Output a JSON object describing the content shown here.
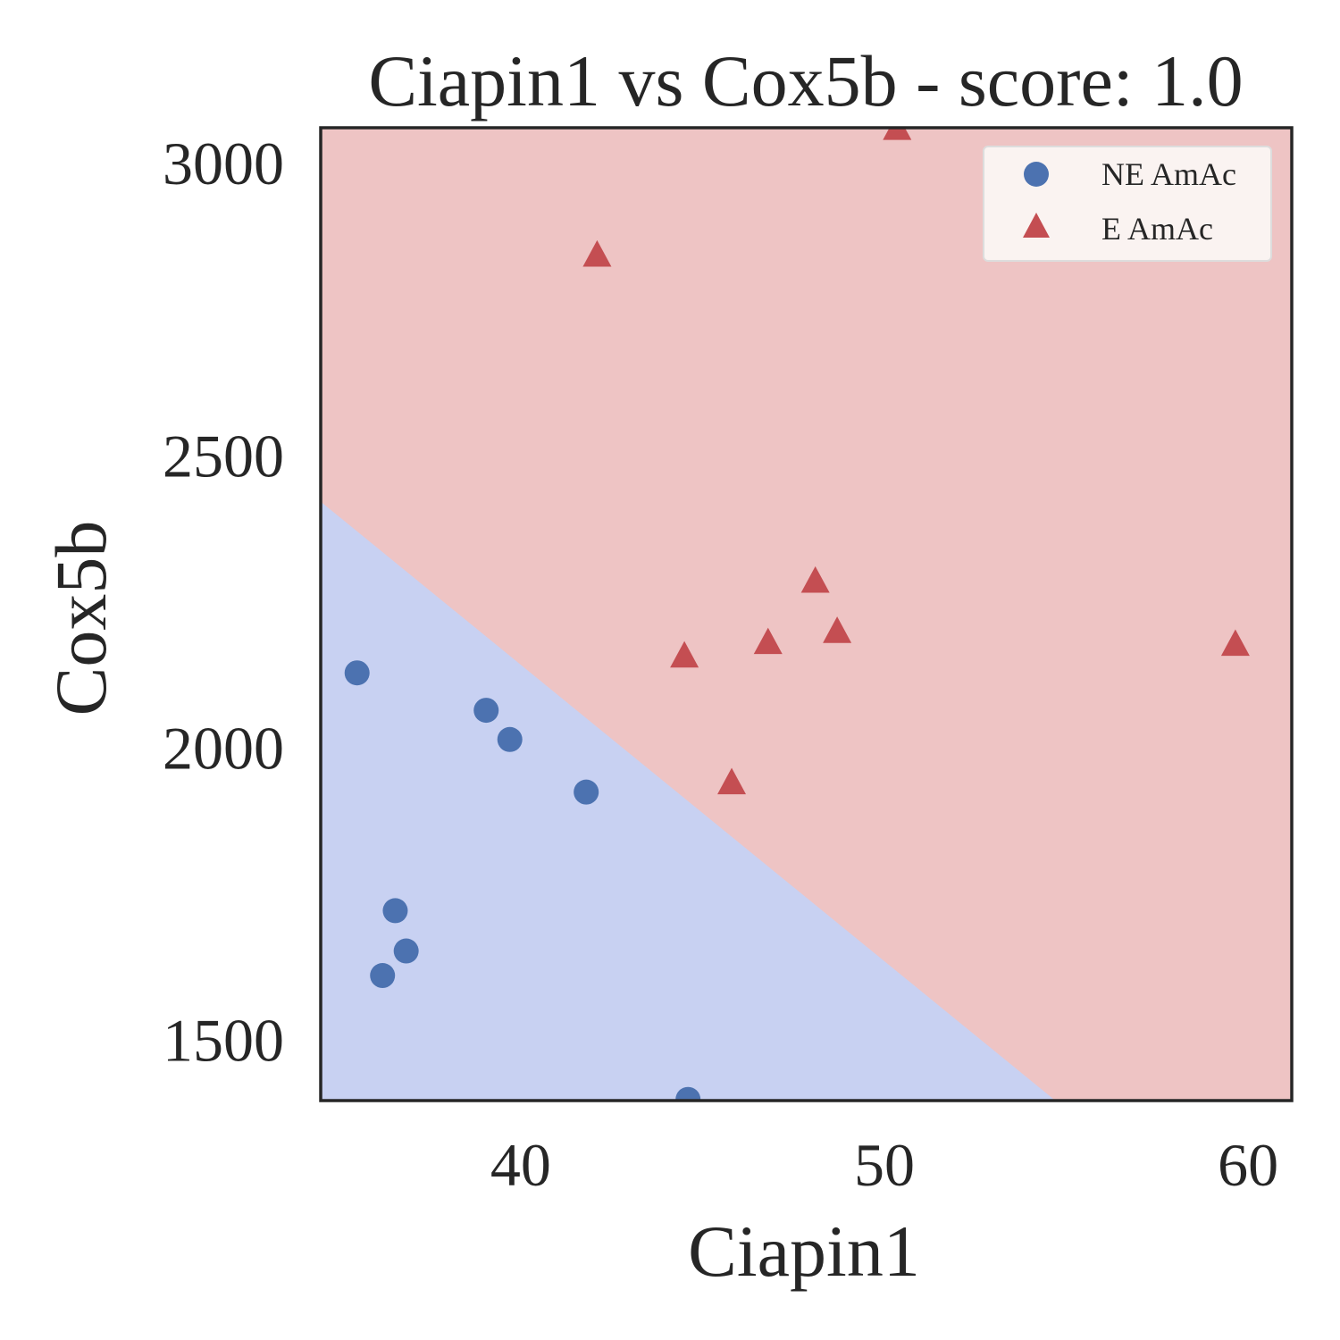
{
  "chart_data": {
    "type": "scatter",
    "title": "Ciapin1 vs Cox5b - score: 1.0",
    "xlabel": "Ciapin1",
    "ylabel": "Cox5b",
    "xlim": [
      34.5,
      61.2
    ],
    "ylim": [
      1395,
      3060
    ],
    "xticks": [
      40,
      50,
      60
    ],
    "yticks": [
      1500,
      2000,
      2500,
      3000
    ],
    "grid": false,
    "legend_position": "top-right",
    "decision_boundary": {
      "description": "linear",
      "points": [
        [
          34.5,
          2420
        ],
        [
          54.7,
          1395
        ]
      ],
      "colors": {
        "NE AmAc": "#c8d1f2",
        "E AmAc": "#eec4c4"
      }
    },
    "series": [
      {
        "name": "NE AmAc",
        "marker": "circle",
        "color": "#4c72b0",
        "points": [
          [
            35.5,
            2127
          ],
          [
            39.05,
            2063
          ],
          [
            39.7,
            2013
          ],
          [
            41.8,
            1923
          ],
          [
            36.55,
            1720
          ],
          [
            36.85,
            1651
          ],
          [
            36.2,
            1609
          ],
          [
            44.6,
            1397
          ]
        ]
      },
      {
        "name": "E AmAc",
        "marker": "triangle",
        "color": "#c44e52",
        "points": [
          [
            50.35,
            3060
          ],
          [
            42.1,
            2843
          ],
          [
            48.1,
            2285
          ],
          [
            48.7,
            2199
          ],
          [
            46.8,
            2180
          ],
          [
            44.5,
            2157
          ],
          [
            45.8,
            1940
          ],
          [
            59.65,
            2177
          ]
        ]
      }
    ]
  }
}
